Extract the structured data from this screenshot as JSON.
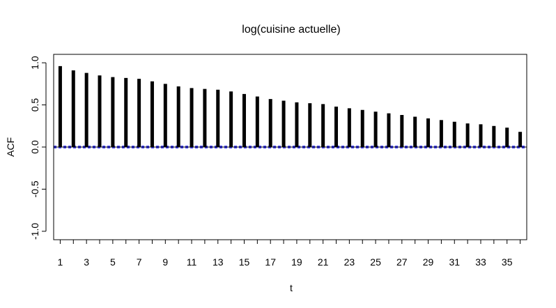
{
  "chart_data": {
    "type": "bar",
    "title": "log(cuisine actuelle)",
    "xlabel": "t",
    "ylabel": "ACF",
    "x": [
      1,
      2,
      3,
      4,
      5,
      6,
      7,
      8,
      9,
      10,
      11,
      12,
      13,
      14,
      15,
      16,
      17,
      18,
      19,
      20,
      21,
      22,
      23,
      24,
      25,
      26,
      27,
      28,
      29,
      30,
      31,
      32,
      33,
      34,
      35,
      36
    ],
    "values": [
      0.96,
      0.91,
      0.88,
      0.85,
      0.83,
      0.82,
      0.81,
      0.78,
      0.75,
      0.72,
      0.7,
      0.69,
      0.68,
      0.66,
      0.63,
      0.6,
      0.57,
      0.55,
      0.53,
      0.52,
      0.51,
      0.48,
      0.46,
      0.44,
      0.42,
      0.4,
      0.38,
      0.36,
      0.34,
      0.32,
      0.3,
      0.28,
      0.27,
      0.25,
      0.23,
      0.18
    ],
    "xlim": [
      0.5,
      36.5
    ],
    "ylim": [
      -1.1,
      1.1
    ],
    "xticks": [
      1,
      2,
      3,
      4,
      5,
      6,
      7,
      8,
      9,
      10,
      11,
      12,
      13,
      14,
      15,
      16,
      17,
      18,
      19,
      20,
      21,
      22,
      23,
      24,
      25,
      26,
      27,
      28,
      29,
      30,
      31,
      32,
      33,
      34,
      35,
      36
    ],
    "xtick_labels": [
      "1",
      "3",
      "5",
      "7",
      "9",
      "11",
      "13",
      "15",
      "17",
      "19",
      "21",
      "23",
      "25",
      "27",
      "29",
      "31",
      "33",
      "35"
    ],
    "xtick_label_values": [
      1,
      3,
      5,
      7,
      9,
      11,
      13,
      15,
      17,
      19,
      21,
      23,
      25,
      27,
      29,
      31,
      33,
      35
    ],
    "yticks": [
      -1.0,
      -0.5,
      0.0,
      0.5,
      1.0
    ],
    "ytick_labels": [
      "-1.0",
      "-0.5",
      "0.0",
      "0.5",
      "1.0"
    ],
    "confidence_band": 0.01,
    "bar_color": "#000000",
    "zero_line_color": "#000000",
    "band_color": "#0000ff",
    "grid": false
  }
}
